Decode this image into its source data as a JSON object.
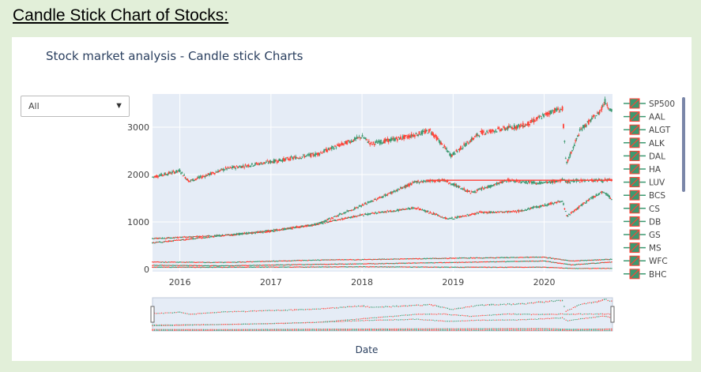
{
  "page": {
    "heading": "Candle Stick Chart of Stocks:"
  },
  "chart": {
    "title": "Stock market analysis - Candle stick Charts",
    "dropdown": {
      "selected": "All",
      "arrow": "▼"
    },
    "xaxis_title": "Date",
    "colors": {
      "increasing": "#3d9970",
      "decreasing": "#ff4136",
      "plot_bg": "#e5ecf6",
      "title": "#2a3f5f"
    }
  },
  "chart_data": {
    "type": "candlestick",
    "title": "Stock market analysis - Candle stick Charts",
    "xlabel": "Date",
    "ylabel": "",
    "x_ticks": [
      "2016",
      "2017",
      "2018",
      "2019",
      "2020"
    ],
    "y_ticks": [
      0,
      1000,
      2000,
      3000
    ],
    "xlim": [
      2015.7,
      2020.75
    ],
    "ylim": [
      -50,
      3700
    ],
    "legend_position": "right",
    "legend": [
      "SP500",
      "AAL",
      "ALGT",
      "ALK",
      "DAL",
      "HA",
      "LUV",
      "BCS",
      "CS",
      "DB",
      "GS",
      "MS",
      "WFC",
      "BHC"
    ],
    "series": [
      {
        "name": "SP500",
        "x": [
          2015.7,
          2016.0,
          2016.1,
          2016.5,
          2017.0,
          2017.5,
          2018.0,
          2018.1,
          2018.5,
          2018.75,
          2018.98,
          2019.3,
          2019.8,
          2020.1,
          2020.2,
          2020.24,
          2020.4,
          2020.6,
          2020.67,
          2020.75
        ],
        "values": [
          1950,
          2080,
          1860,
          2120,
          2270,
          2430,
          2800,
          2650,
          2800,
          2930,
          2400,
          2880,
          3050,
          3350,
          3380,
          2200,
          2950,
          3300,
          3550,
          3300
        ]
      },
      {
        "name": "ALGT",
        "x": [
          2015.7,
          2016.5,
          2017.0,
          2017.5,
          2018.0,
          2018.3,
          2018.6,
          2018.9,
          2019.2,
          2019.6,
          2020.0,
          2020.2,
          2020.25,
          2020.4,
          2020.75
        ],
        "values": [
          650,
          720,
          820,
          950,
          1350,
          1600,
          1850,
          1880,
          1620,
          1880,
          1820,
          1880,
          1850,
          1880,
          1880
        ]
      },
      {
        "name": "GS",
        "x": [
          2015.7,
          2016.5,
          2017.0,
          2017.5,
          2018.0,
          2018.2,
          2018.6,
          2018.95,
          2019.3,
          2019.7,
          2020.0,
          2020.2,
          2020.25,
          2020.5,
          2020.65,
          2020.75
        ],
        "values": [
          560,
          720,
          800,
          950,
          1150,
          1200,
          1300,
          1060,
          1200,
          1220,
          1350,
          1450,
          1120,
          1480,
          1650,
          1470
        ]
      },
      {
        "name": "AAL",
        "x": [
          2015.7,
          2016.5,
          2017.5,
          2018.0,
          2019.0,
          2020.0,
          2020.3,
          2020.75
        ],
        "values": [
          160,
          150,
          200,
          210,
          240,
          260,
          180,
          220
        ]
      },
      {
        "name": "DAL",
        "x": [
          2015.7,
          2016.5,
          2017.5,
          2018.0,
          2019.0,
          2020.0,
          2020.3,
          2020.75
        ],
        "values": [
          90,
          80,
          110,
          120,
          150,
          180,
          100,
          160
        ]
      },
      {
        "name": "WFC",
        "x": [
          2015.7,
          2016.5,
          2017.5,
          2018.0,
          2019.0,
          2020.0,
          2020.3,
          2020.75
        ],
        "values": [
          50,
          50,
          55,
          60,
          50,
          50,
          25,
          25
        ]
      }
    ]
  }
}
